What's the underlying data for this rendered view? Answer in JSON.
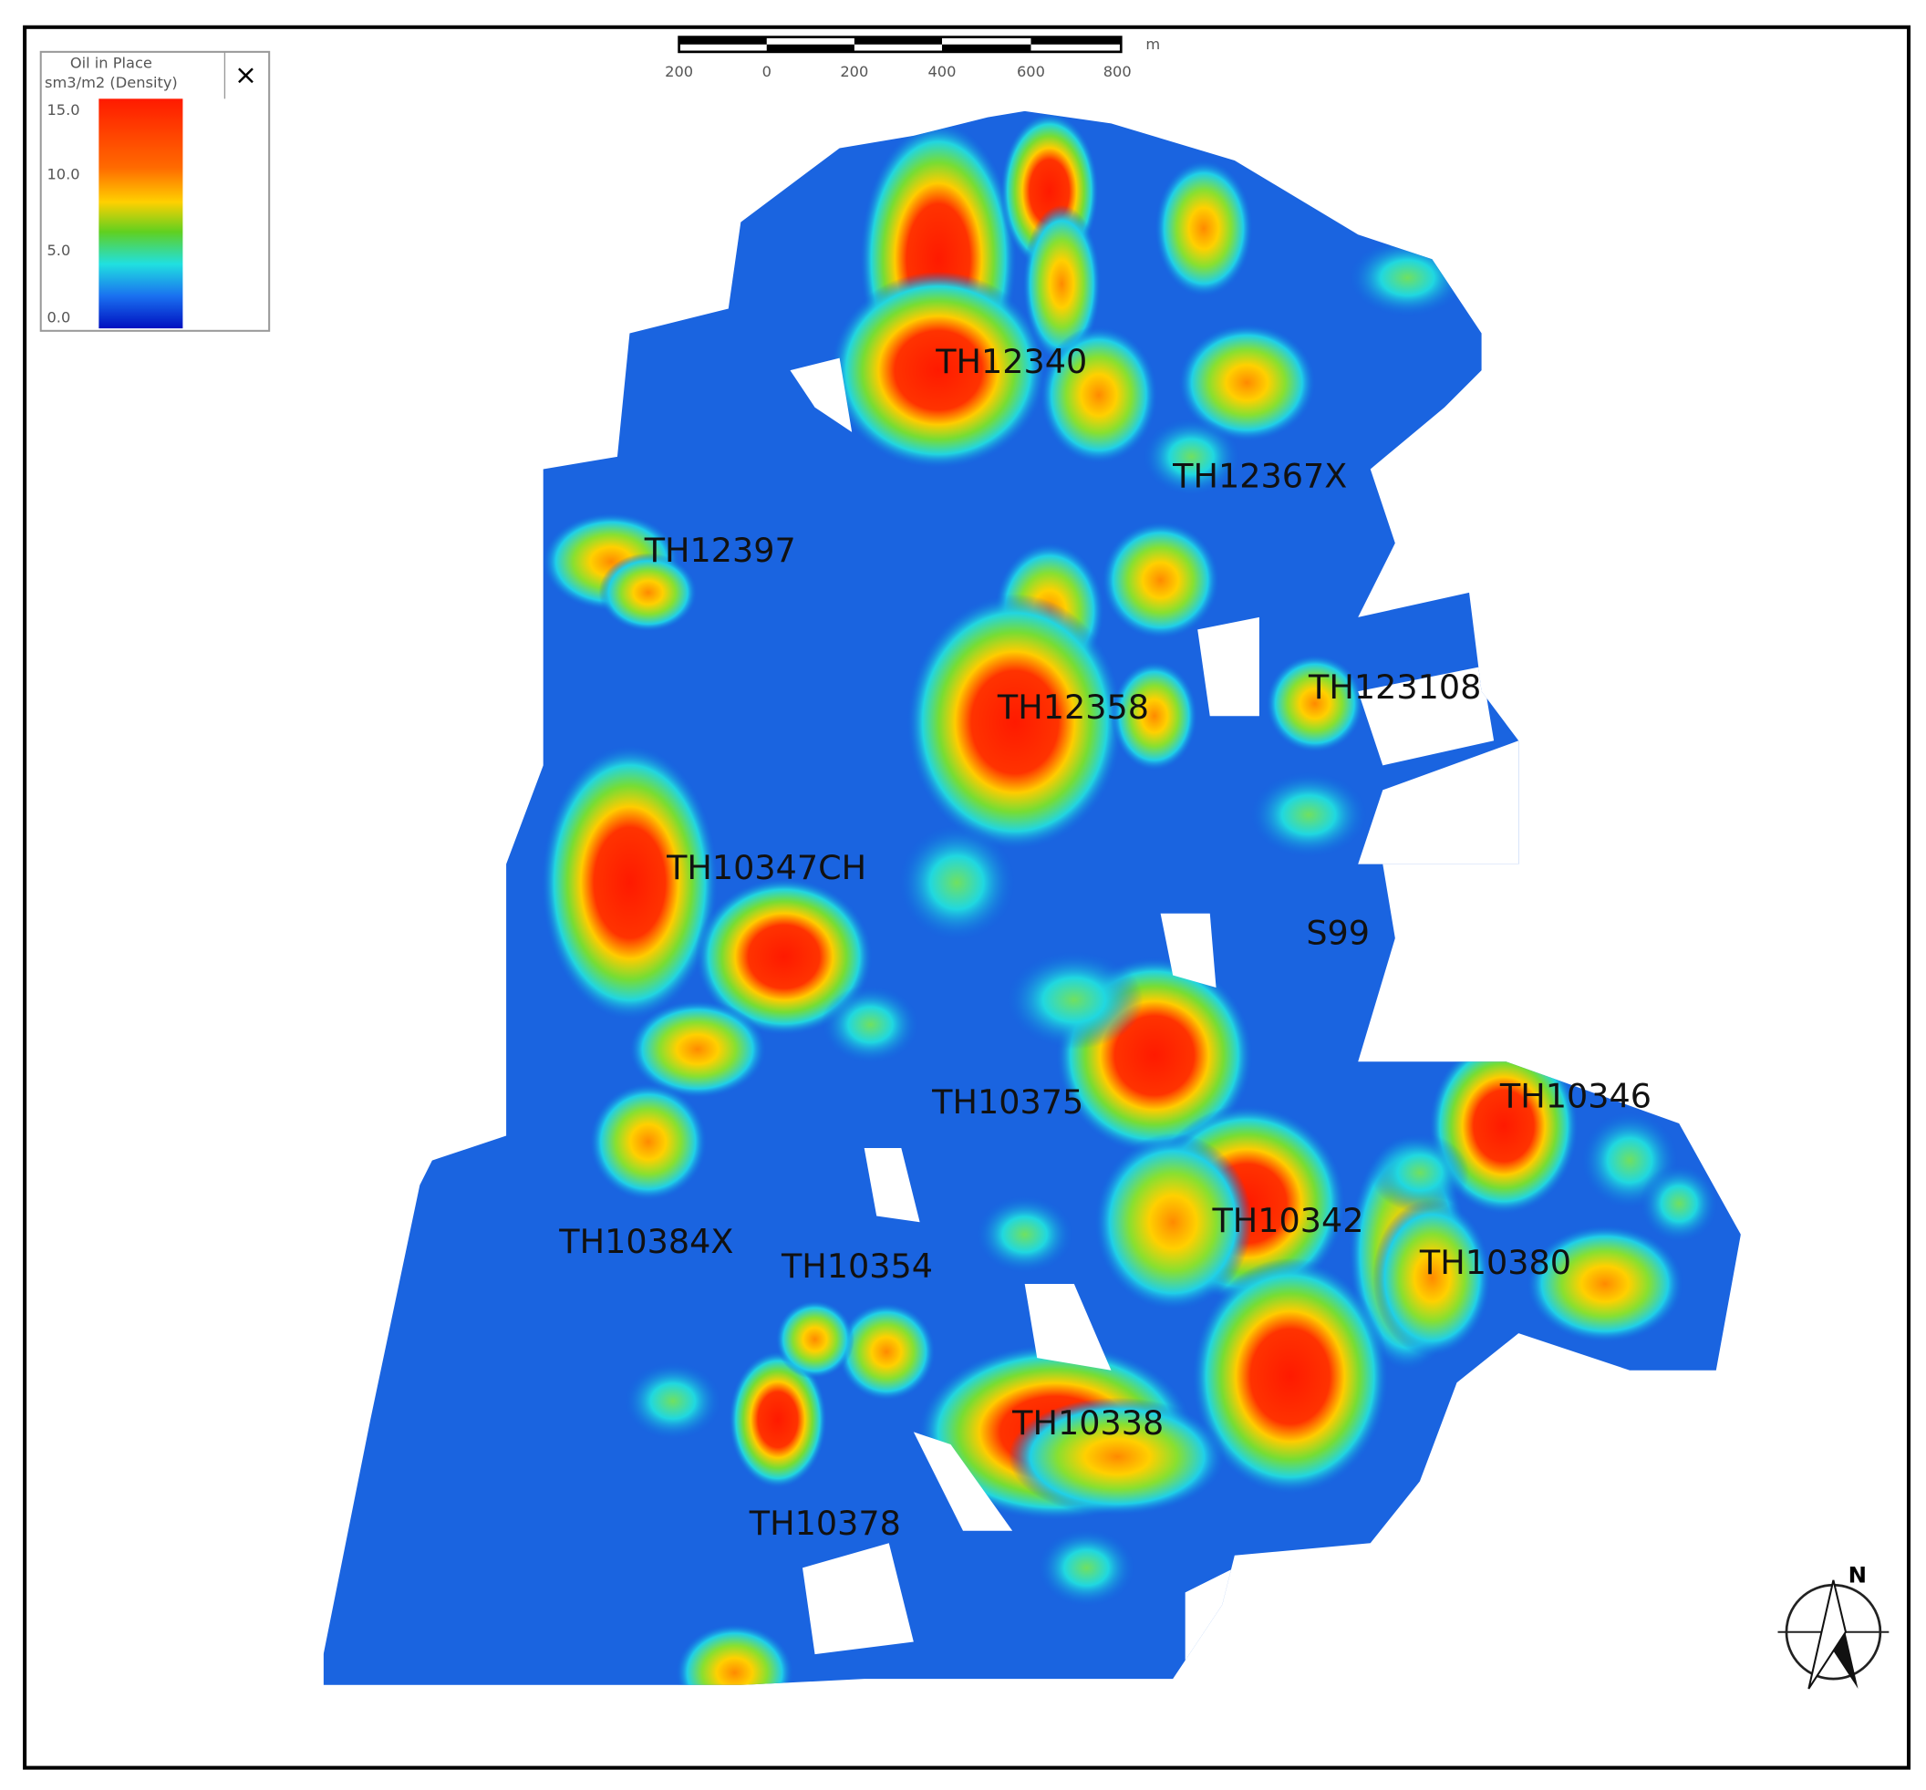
{
  "legend": {
    "title": [
      "Oil in Place",
      "sm3/m2 (Density)"
    ],
    "ticks": [
      "15.0",
      "10.0",
      "5.0",
      "0.0"
    ],
    "close": "×"
  },
  "scale_bar": {
    "labels": [
      "200",
      "0",
      "200",
      "400",
      "600",
      "800"
    ],
    "unit": "m"
  },
  "wells": [
    "TH12340",
    "TH12367X",
    "TH12397",
    "TH123108",
    "TH12358",
    "TH10347CH",
    "S99",
    "TH10375",
    "TH10346",
    "TH10342",
    "TH10384X",
    "TH10354",
    "TH10380",
    "TH10338",
    "TH10378"
  ],
  "north": "N"
}
